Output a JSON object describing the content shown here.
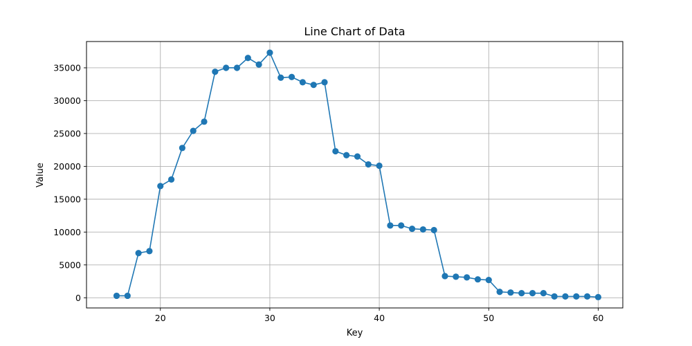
{
  "chart_data": {
    "type": "line",
    "title": "Line Chart of Data",
    "xlabel": "Key",
    "ylabel": "Value",
    "xlim": [
      13.25,
      62.25
    ],
    "ylim": [
      -1550,
      39000
    ],
    "xticks": [
      20,
      30,
      40,
      50,
      60
    ],
    "yticks": [
      0,
      5000,
      10000,
      15000,
      20000,
      25000,
      30000,
      35000
    ],
    "grid": true,
    "series": [
      {
        "color": "#1f77b4",
        "marker": "circle",
        "x": [
          16,
          17,
          18,
          19,
          20,
          21,
          22,
          23,
          24,
          25,
          26,
          27,
          28,
          29,
          30,
          31,
          32,
          33,
          34,
          35,
          36,
          37,
          38,
          39,
          40,
          41,
          42,
          43,
          44,
          45,
          46,
          47,
          48,
          49,
          50,
          51,
          52,
          53,
          54,
          55,
          56,
          57,
          58,
          59,
          60
        ],
        "values": [
          300,
          300,
          6800,
          7100,
          17000,
          18000,
          22800,
          25400,
          26800,
          34400,
          35000,
          35000,
          36500,
          35500,
          37300,
          33500,
          33600,
          32800,
          32400,
          32800,
          22300,
          21700,
          21500,
          20300,
          20100,
          11000,
          11000,
          10500,
          10400,
          10300,
          3300,
          3200,
          3100,
          2800,
          2700,
          900,
          800,
          700,
          700,
          700,
          200,
          200,
          200,
          200,
          100
        ]
      }
    ]
  }
}
